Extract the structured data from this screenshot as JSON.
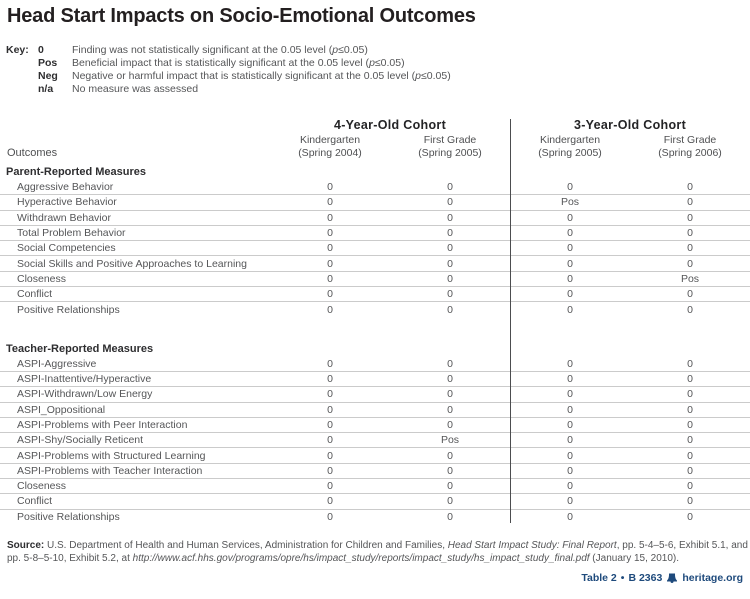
{
  "title": "Head Start Impacts on Socio-Emotional Outcomes",
  "key": {
    "label": "Key:",
    "entries": [
      {
        "symbol": "0",
        "desc_pre": "Finding was not statistically significant at the 0.05 level (",
        "p": "p",
        "desc_post": "≤0.05)"
      },
      {
        "symbol": "Pos",
        "desc_pre": "Beneficial impact that is statistically significant at the 0.05 level (",
        "p": "p",
        "desc_post": "≤0.05)"
      },
      {
        "symbol": "Neg",
        "desc_pre": "Negative or harmful impact that is statistically significant at the 0.05 level (",
        "p": "p",
        "desc_post": "≤0.05)"
      },
      {
        "symbol": "n/a",
        "desc_pre": "No measure was assessed",
        "p": "",
        "desc_post": ""
      }
    ]
  },
  "table": {
    "outcomes_header": "Outcomes",
    "cohorts": [
      {
        "name": "4-Year-Old Cohort",
        "columns": [
          {
            "line1": "Kindergarten",
            "line2": "(Spring 2004)"
          },
          {
            "line1": "First Grade",
            "line2": "(Spring 2005)"
          }
        ]
      },
      {
        "name": "3-Year-Old Cohort",
        "columns": [
          {
            "line1": "Kindergarten",
            "line2": "(Spring 2005)"
          },
          {
            "line1": "First Grade",
            "line2": "(Spring 2006)"
          }
        ]
      }
    ],
    "sections": [
      {
        "title": "Parent-Reported Measures",
        "rows": [
          {
            "label": "Aggressive Behavior",
            "values": [
              "0",
              "0",
              "0",
              "0"
            ]
          },
          {
            "label": "Hyperactive Behavior",
            "values": [
              "0",
              "0",
              "Pos",
              "0"
            ]
          },
          {
            "label": "Withdrawn Behavior",
            "values": [
              "0",
              "0",
              "0",
              "0"
            ]
          },
          {
            "label": "Total Problem Behavior",
            "values": [
              "0",
              "0",
              "0",
              "0"
            ]
          },
          {
            "label": "Social Competencies",
            "values": [
              "0",
              "0",
              "0",
              "0"
            ]
          },
          {
            "label": "Social Skills and Positive Approaches to Learning",
            "values": [
              "0",
              "0",
              "0",
              "0"
            ]
          },
          {
            "label": "Closeness",
            "values": [
              "0",
              "0",
              "0",
              "Pos"
            ]
          },
          {
            "label": "Conflict",
            "values": [
              "0",
              "0",
              "0",
              "0"
            ]
          },
          {
            "label": "Positive Relationships",
            "values": [
              "0",
              "0",
              "0",
              "0"
            ]
          }
        ]
      },
      {
        "title": "Teacher-Reported Measures",
        "rows": [
          {
            "label": "ASPI-Aggressive",
            "values": [
              "0",
              "0",
              "0",
              "0"
            ]
          },
          {
            "label": "ASPI-Inattentive/Hyperactive",
            "values": [
              "0",
              "0",
              "0",
              "0"
            ]
          },
          {
            "label": "ASPI-Withdrawn/Low Energy",
            "values": [
              "0",
              "0",
              "0",
              "0"
            ]
          },
          {
            "label": "ASPI_Oppositional",
            "values": [
              "0",
              "0",
              "0",
              "0"
            ]
          },
          {
            "label": "ASPI-Problems with Peer Interaction",
            "values": [
              "0",
              "0",
              "0",
              "0"
            ]
          },
          {
            "label": "ASPI-Shy/Socially Reticent",
            "values": [
              "0",
              "Pos",
              "0",
              "0"
            ]
          },
          {
            "label": "ASPI-Problems with Structured Learning",
            "values": [
              "0",
              "0",
              "0",
              "0"
            ]
          },
          {
            "label": "ASPI-Problems with Teacher Interaction",
            "values": [
              "0",
              "0",
              "0",
              "0"
            ]
          },
          {
            "label": "Closeness",
            "values": [
              "0",
              "0",
              "0",
              "0"
            ]
          },
          {
            "label": "Conflict",
            "values": [
              "0",
              "0",
              "0",
              "0"
            ]
          },
          {
            "label": "Positive Relationships",
            "values": [
              "0",
              "0",
              "0",
              "0"
            ]
          }
        ]
      }
    ]
  },
  "source": {
    "label": "Source:",
    "text_1": " U.S. Department of Health and Human Services, Administration for Children and Families, ",
    "italic_1": "Head Start Impact Study: Final Report",
    "text_2": ", pp. 5-4–5-6, Exhibit 5.1, and pp. 5-8–5-10, Exhibit 5.2, at ",
    "italic_2": "http://www.acf.hhs.gov/programs/opre/hs/impact_study/reports/impact_study/hs_impact_study_final.pdf",
    "text_3": " (January 15, 2010)."
  },
  "footer": {
    "table_ref": "Table 2",
    "separator": "•",
    "doc_ref": "B 2363",
    "site": "heritage.org",
    "accent_color": "#1e4a7c"
  }
}
